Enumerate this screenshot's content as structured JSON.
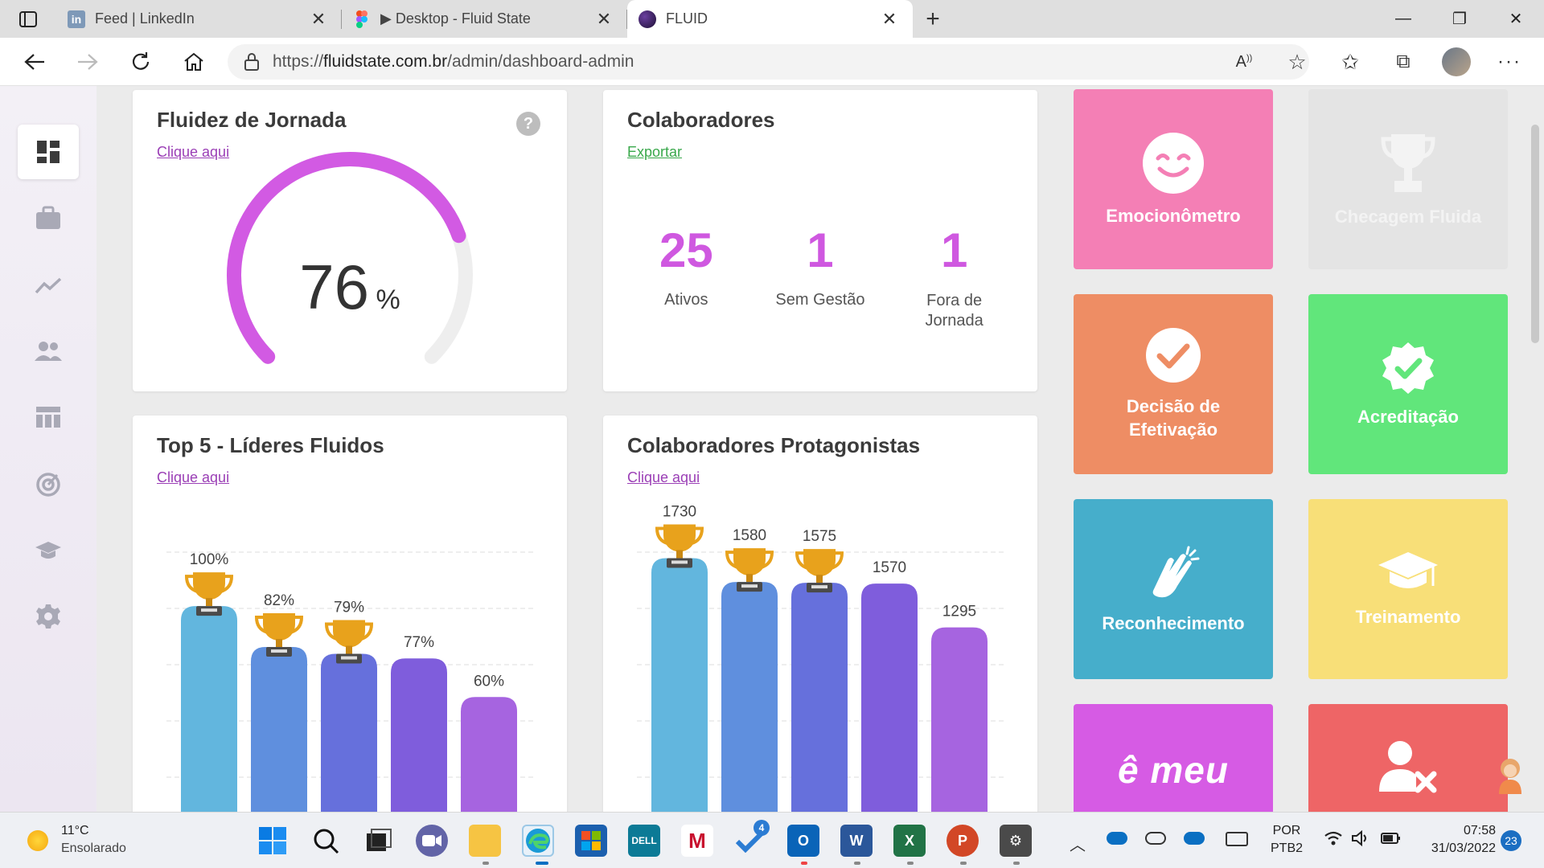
{
  "browser": {
    "tabs": [
      {
        "title": "Feed | LinkedIn",
        "favicon": "linkedin-icon",
        "color": "#7e99b8"
      },
      {
        "title": "▶ Desktop - Fluid State",
        "favicon": "figma-icon",
        "color": "#f24e1e"
      },
      {
        "title": "FLUID",
        "favicon": "fluid-logo-icon",
        "color": "#3a1d5c"
      }
    ],
    "url_scheme": "https://",
    "url_host": "fluidstate.com.br",
    "url_path": "/admin/dashboard-admin"
  },
  "sidebar": {
    "items": [
      "dashboard-icon",
      "briefcase-icon",
      "trend-icon",
      "users-icon",
      "table-icon",
      "target-icon",
      "graduation-icon",
      "gear-icon"
    ]
  },
  "fluidez": {
    "title": "Fluidez de Jornada",
    "link": "Clique aqui",
    "value": "76",
    "unit": "%",
    "fraction": 0.76
  },
  "colaboradores": {
    "title": "Colaboradores",
    "link": "Exportar",
    "stats": [
      {
        "value": "25",
        "label1": "Ativos",
        "label2": ""
      },
      {
        "value": "1",
        "label1": "Sem Gestão",
        "label2": ""
      },
      {
        "value": "1",
        "label1": "Fora de",
        "label2": "Jornada"
      }
    ]
  },
  "top5": {
    "title": "Top 5 - Líderes Fluidos",
    "link": "Clique aqui"
  },
  "protagonistas": {
    "title": "Colaboradores Protagonistas",
    "link": "Clique aqui"
  },
  "chart_data": [
    {
      "type": "bar",
      "title": "Top 5 - Líderes Fluidos",
      "values": [
        100,
        82,
        79,
        77,
        60
      ],
      "labels": [
        "100%",
        "82%",
        "79%",
        "77%",
        "60%"
      ],
      "trophies": [
        true,
        true,
        true,
        false,
        false
      ],
      "ylim": [
        0,
        140
      ],
      "grid": true
    },
    {
      "type": "bar",
      "title": "Colaboradores Protagonistas",
      "values": [
        1730,
        1580,
        1575,
        1570,
        1295
      ],
      "labels": [
        "1730",
        "1580",
        "1575",
        "1570",
        "1295"
      ],
      "trophies": [
        true,
        true,
        true,
        false,
        false
      ],
      "ylim": [
        0,
        2000
      ],
      "grid": true
    }
  ],
  "tiles": [
    {
      "label": "Emocionômetro",
      "color": "#f47fb5",
      "icon": "smiley-icon",
      "dim": false
    },
    {
      "label": "Checagem Fluida",
      "color": "#e4e4e4",
      "icon": "trophy-icon",
      "dim": true
    },
    {
      "label": "Decisão de Efetivação",
      "color": "#ee8d64",
      "icon": "check-circle-icon",
      "dim": false
    },
    {
      "label": "Acreditação",
      "color": "#61e67b",
      "icon": "badge-check-icon",
      "dim": false
    },
    {
      "label": "Reconhecimento",
      "color": "#46aecb",
      "icon": "clap-icon",
      "dim": false
    },
    {
      "label": "Treinamento",
      "color": "#f8df78",
      "icon": "mortarboard-icon",
      "dim": false
    },
    {
      "label": "ê meu",
      "color": "#d65be4",
      "icon": "e-meu-logo",
      "dim": false
    },
    {
      "label": "",
      "color": "#ee6566",
      "icon": "user-remove-icon",
      "dim": false
    }
  ],
  "taskbar": {
    "weather_temp": "11°C",
    "weather_desc": "Ensolarado",
    "lang1": "POR",
    "lang2": "PTB2",
    "time": "07:58",
    "date": "31/03/2022",
    "notifications": "23",
    "todo_badge": "4"
  }
}
